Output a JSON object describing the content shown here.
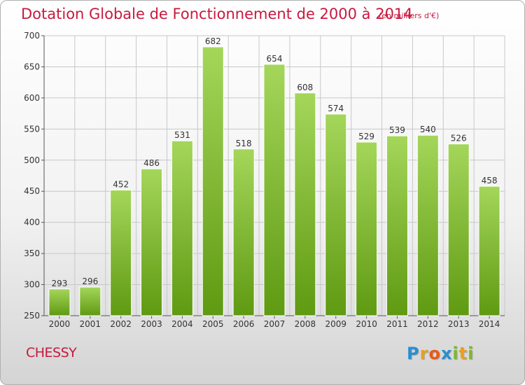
{
  "header": {
    "title": "Dotation Globale de Fonctionnement de 2000 à 2014",
    "subtitle": "(en milliers d'€)"
  },
  "footer": {
    "commune": "CHESSY",
    "logo": [
      "P",
      "r",
      "o",
      "x",
      "i",
      "t",
      "i"
    ],
    "logo_colors": [
      "#2a8fd0",
      "#e8a020",
      "#e85a1a",
      "#2a8fd0",
      "#7cb82f",
      "#e8a020",
      "#7cb82f"
    ]
  },
  "colors": {
    "bar_top": "#a4d65a",
    "bar_bottom": "#5f9a12",
    "grid": "#c8c8c8",
    "axis": "#555555",
    "title": "#c8193f"
  },
  "chart_data": {
    "type": "bar",
    "title": "Dotation Globale de Fonctionnement de 2000 à 2014",
    "subtitle": "(en milliers d'€)",
    "categories": [
      "2000",
      "2001",
      "2002",
      "2003",
      "2004",
      "2005",
      "2006",
      "2007",
      "2008",
      "2009",
      "2010",
      "2011",
      "2012",
      "2013",
      "2014"
    ],
    "values": [
      293,
      296,
      452,
      486,
      531,
      682,
      518,
      654,
      608,
      574,
      529,
      539,
      540,
      526,
      458
    ],
    "ylim": [
      250,
      700
    ],
    "yticks": [
      250,
      300,
      350,
      400,
      450,
      500,
      550,
      600,
      650,
      700
    ],
    "grid": true,
    "legend": "none"
  }
}
